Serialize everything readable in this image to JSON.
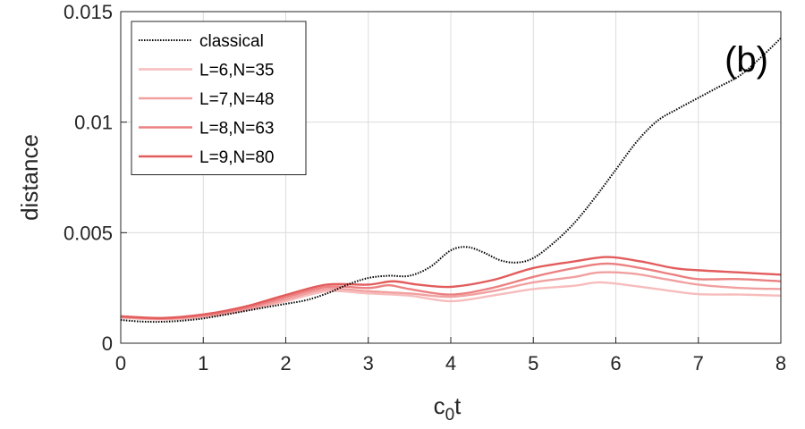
{
  "chart_data": {
    "type": "line",
    "title": "",
    "xlabel": "c",
    "xlabel_sub": "0",
    "xlabel_tail": "t",
    "ylabel": "distance",
    "xlim": [
      0,
      8
    ],
    "ylim": [
      0,
      0.015
    ],
    "xticks": [
      0,
      1,
      2,
      3,
      4,
      5,
      6,
      7,
      8
    ],
    "xtick_labels": [
      "0",
      "1",
      "2",
      "3",
      "4",
      "5",
      "6",
      "7",
      "8"
    ],
    "yticks": [
      0,
      0.005,
      0.01,
      0.015
    ],
    "ytick_labels": [
      "0",
      "0.005",
      "0.01",
      "0.015"
    ],
    "grid": true,
    "legend_position": "top-left",
    "panel_label": "(b)",
    "series": [
      {
        "name": "classical",
        "color": "#000000",
        "style": "dotted",
        "points": [
          [
            0,
            0.00105
          ],
          [
            0.25,
            0.00098
          ],
          [
            0.5,
            0.00097
          ],
          [
            0.75,
            0.00102
          ],
          [
            1,
            0.00112
          ],
          [
            1.25,
            0.00128
          ],
          [
            1.5,
            0.00145
          ],
          [
            1.75,
            0.00162
          ],
          [
            2,
            0.00178
          ],
          [
            2.25,
            0.00195
          ],
          [
            2.5,
            0.00225
          ],
          [
            2.75,
            0.00265
          ],
          [
            3,
            0.00295
          ],
          [
            3.25,
            0.00305
          ],
          [
            3.5,
            0.00305
          ],
          [
            3.75,
            0.00345
          ],
          [
            4,
            0.0042
          ],
          [
            4.2,
            0.00435
          ],
          [
            4.4,
            0.0041
          ],
          [
            4.6,
            0.00375
          ],
          [
            4.8,
            0.00365
          ],
          [
            5,
            0.00385
          ],
          [
            5.25,
            0.00455
          ],
          [
            5.5,
            0.00545
          ],
          [
            5.75,
            0.0066
          ],
          [
            6,
            0.00785
          ],
          [
            6.25,
            0.0091
          ],
          [
            6.5,
            0.01005
          ],
          [
            6.75,
            0.0106
          ],
          [
            7,
            0.0111
          ],
          [
            7.25,
            0.0116
          ],
          [
            7.5,
            0.0121
          ],
          [
            7.75,
            0.0129
          ],
          [
            8,
            0.0138
          ]
        ]
      },
      {
        "name": "L=6,N=35",
        "color": "#f7bcbc",
        "style": "solid",
        "points": [
          [
            0,
            0.00115
          ],
          [
            0.5,
            0.00108
          ],
          [
            1,
            0.00118
          ],
          [
            1.5,
            0.00148
          ],
          [
            2,
            0.0019
          ],
          [
            2.5,
            0.00235
          ],
          [
            3,
            0.00225
          ],
          [
            3.5,
            0.00215
          ],
          [
            4,
            0.0019
          ],
          [
            4.5,
            0.00215
          ],
          [
            5,
            0.00245
          ],
          [
            5.5,
            0.0026
          ],
          [
            5.8,
            0.00275
          ],
          [
            6.2,
            0.0026
          ],
          [
            6.6,
            0.0024
          ],
          [
            7,
            0.00222
          ],
          [
            7.5,
            0.0022
          ],
          [
            8,
            0.00215
          ]
        ]
      },
      {
        "name": "L=7,N=48",
        "color": "#f1a0a0",
        "style": "solid",
        "points": [
          [
            0,
            0.00118
          ],
          [
            0.5,
            0.0011
          ],
          [
            1,
            0.00122
          ],
          [
            1.5,
            0.00152
          ],
          [
            2,
            0.00198
          ],
          [
            2.5,
            0.00245
          ],
          [
            3,
            0.00235
          ],
          [
            3.5,
            0.00225
          ],
          [
            4,
            0.0021
          ],
          [
            4.5,
            0.00235
          ],
          [
            5,
            0.00275
          ],
          [
            5.5,
            0.003
          ],
          [
            5.8,
            0.0032
          ],
          [
            6.2,
            0.00315
          ],
          [
            6.6,
            0.0029
          ],
          [
            7,
            0.00265
          ],
          [
            7.5,
            0.0025
          ],
          [
            8,
            0.00245
          ]
        ]
      },
      {
        "name": "L=8,N=63",
        "color": "#ec8080",
        "style": "solid",
        "points": [
          [
            0,
            0.0012
          ],
          [
            0.5,
            0.00112
          ],
          [
            1,
            0.00126
          ],
          [
            1.5,
            0.00158
          ],
          [
            2,
            0.00208
          ],
          [
            2.5,
            0.00255
          ],
          [
            3,
            0.0025
          ],
          [
            3.25,
            0.00262
          ],
          [
            3.5,
            0.00245
          ],
          [
            4,
            0.0022
          ],
          [
            4.5,
            0.0025
          ],
          [
            5,
            0.003
          ],
          [
            5.5,
            0.0034
          ],
          [
            5.9,
            0.0036
          ],
          [
            6.3,
            0.0034
          ],
          [
            6.7,
            0.0031
          ],
          [
            7,
            0.0029
          ],
          [
            7.5,
            0.0029
          ],
          [
            8,
            0.0028
          ]
        ]
      },
      {
        "name": "L=9,N=80",
        "color": "#e25c5c",
        "style": "solid",
        "points": [
          [
            0,
            0.00122
          ],
          [
            0.5,
            0.00114
          ],
          [
            1,
            0.0013
          ],
          [
            1.5,
            0.00165
          ],
          [
            2,
            0.00218
          ],
          [
            2.5,
            0.00265
          ],
          [
            3,
            0.00265
          ],
          [
            3.3,
            0.0028
          ],
          [
            3.6,
            0.00265
          ],
          [
            4,
            0.00255
          ],
          [
            4.5,
            0.00285
          ],
          [
            5,
            0.0034
          ],
          [
            5.5,
            0.0037
          ],
          [
            5.9,
            0.0039
          ],
          [
            6.3,
            0.0037
          ],
          [
            6.7,
            0.0034
          ],
          [
            7,
            0.0033
          ],
          [
            7.5,
            0.0032
          ],
          [
            8,
            0.0031
          ]
        ]
      }
    ]
  }
}
